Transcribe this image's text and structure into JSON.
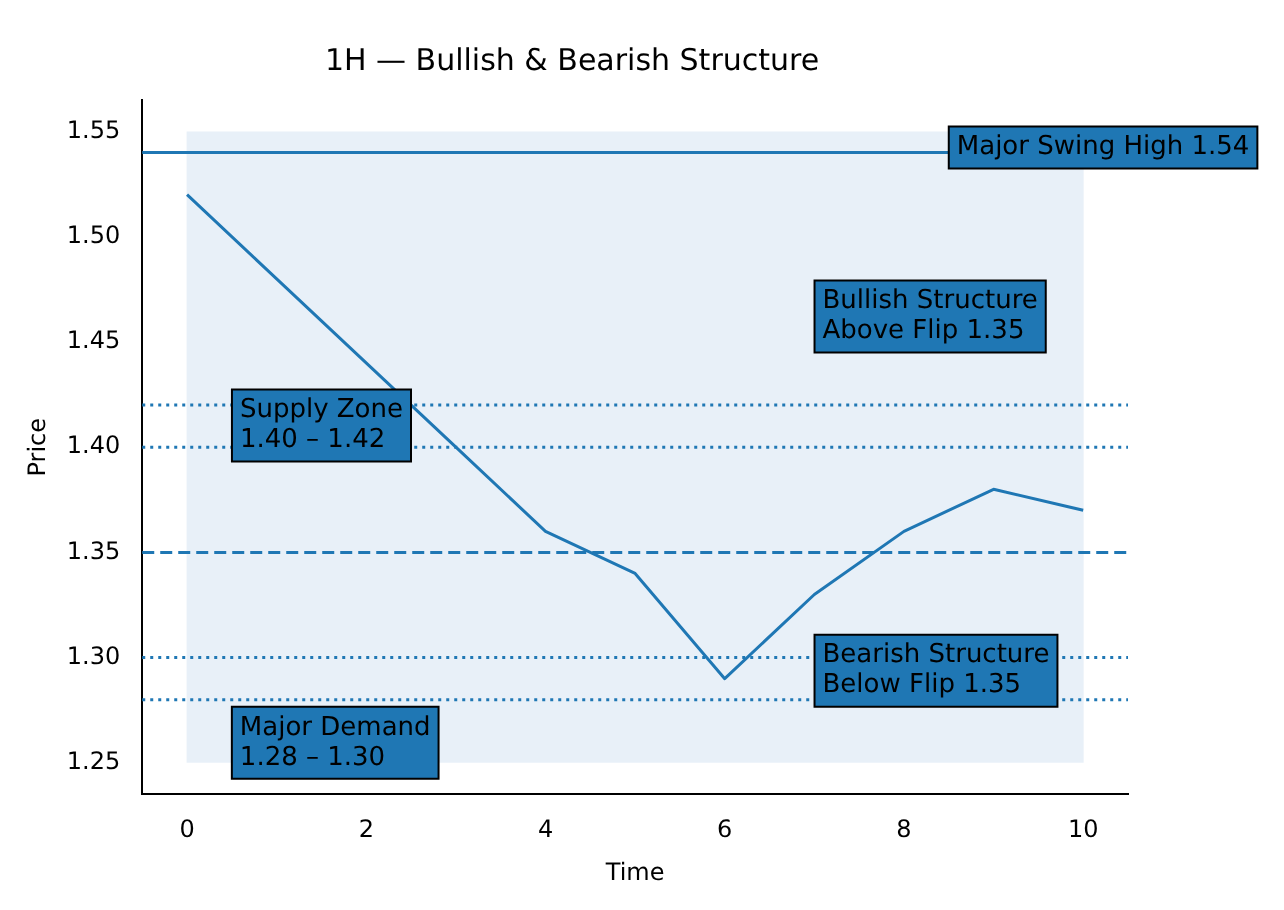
{
  "chart_data": {
    "type": "line",
    "title": "1H — Bullish & Bearish Structure",
    "xlabel": "Time",
    "ylabel": "Price",
    "x": [
      0,
      1,
      2,
      3,
      4,
      5,
      6,
      7,
      8,
      9,
      10
    ],
    "series": [
      {
        "color": "#1f77b4",
        "values": [
          1.52,
          1.48,
          null,
          1.4,
          1.36,
          1.34,
          1.29,
          1.33,
          1.36,
          1.38,
          1.37
        ]
      }
    ],
    "xlim": [
      -0.5,
      10.5
    ],
    "xticks": [
      0,
      2,
      4,
      6,
      8,
      10
    ],
    "ylim": [
      1.235,
      1.565
    ],
    "yticks": [
      1.25,
      {
        "value": 1.3,
        "label": "1.30"
      },
      1.35,
      {
        "value": 1.4,
        "label": "1.40"
      },
      1.45,
      {
        "value": 1.5,
        "label": "1.50"
      },
      1.55
    ],
    "ref_lines": [
      {
        "axis": "y",
        "value": 1.54,
        "line_style": "solid",
        "color": "#1f77b4"
      },
      {
        "axis": "y",
        "value": 1.42,
        "line_style": "dotted",
        "color": "#1f77b4"
      },
      {
        "axis": "y",
        "value": 1.4,
        "line_style": "dotted",
        "color": "#1f77b4"
      },
      {
        "axis": "y",
        "value": 1.35,
        "line_style": "dashed",
        "color": "#1f77b4"
      },
      {
        "axis": "y",
        "value": 1.3,
        "line_style": "dotted",
        "color": "#1f77b4"
      },
      {
        "axis": "y",
        "value": 1.28,
        "line_style": "dotted",
        "color": "#1f77b4"
      }
    ],
    "bands": [
      {
        "axis": "y",
        "from": 1.25,
        "to": 1.55,
        "color": "#e8f0f8"
      }
    ],
    "annotations": [
      {
        "text": "Major Swing High 1.54",
        "x": 8.5,
        "y": 1.54
      },
      "Bullish Structure\nAbove Flip 1.35",
      "Supply Zone\n1.40 – 1.42",
      "Bearish Structure\nBelow Flip 1.35",
      {
        "text": "Major Demand\n1.28 – 1.30",
        "x": 0.5,
        "y": 1.25
      }
    ],
    "grid": false,
    "legend": false,
    "marker": "none",
    "line_style": "solid"
  }
}
